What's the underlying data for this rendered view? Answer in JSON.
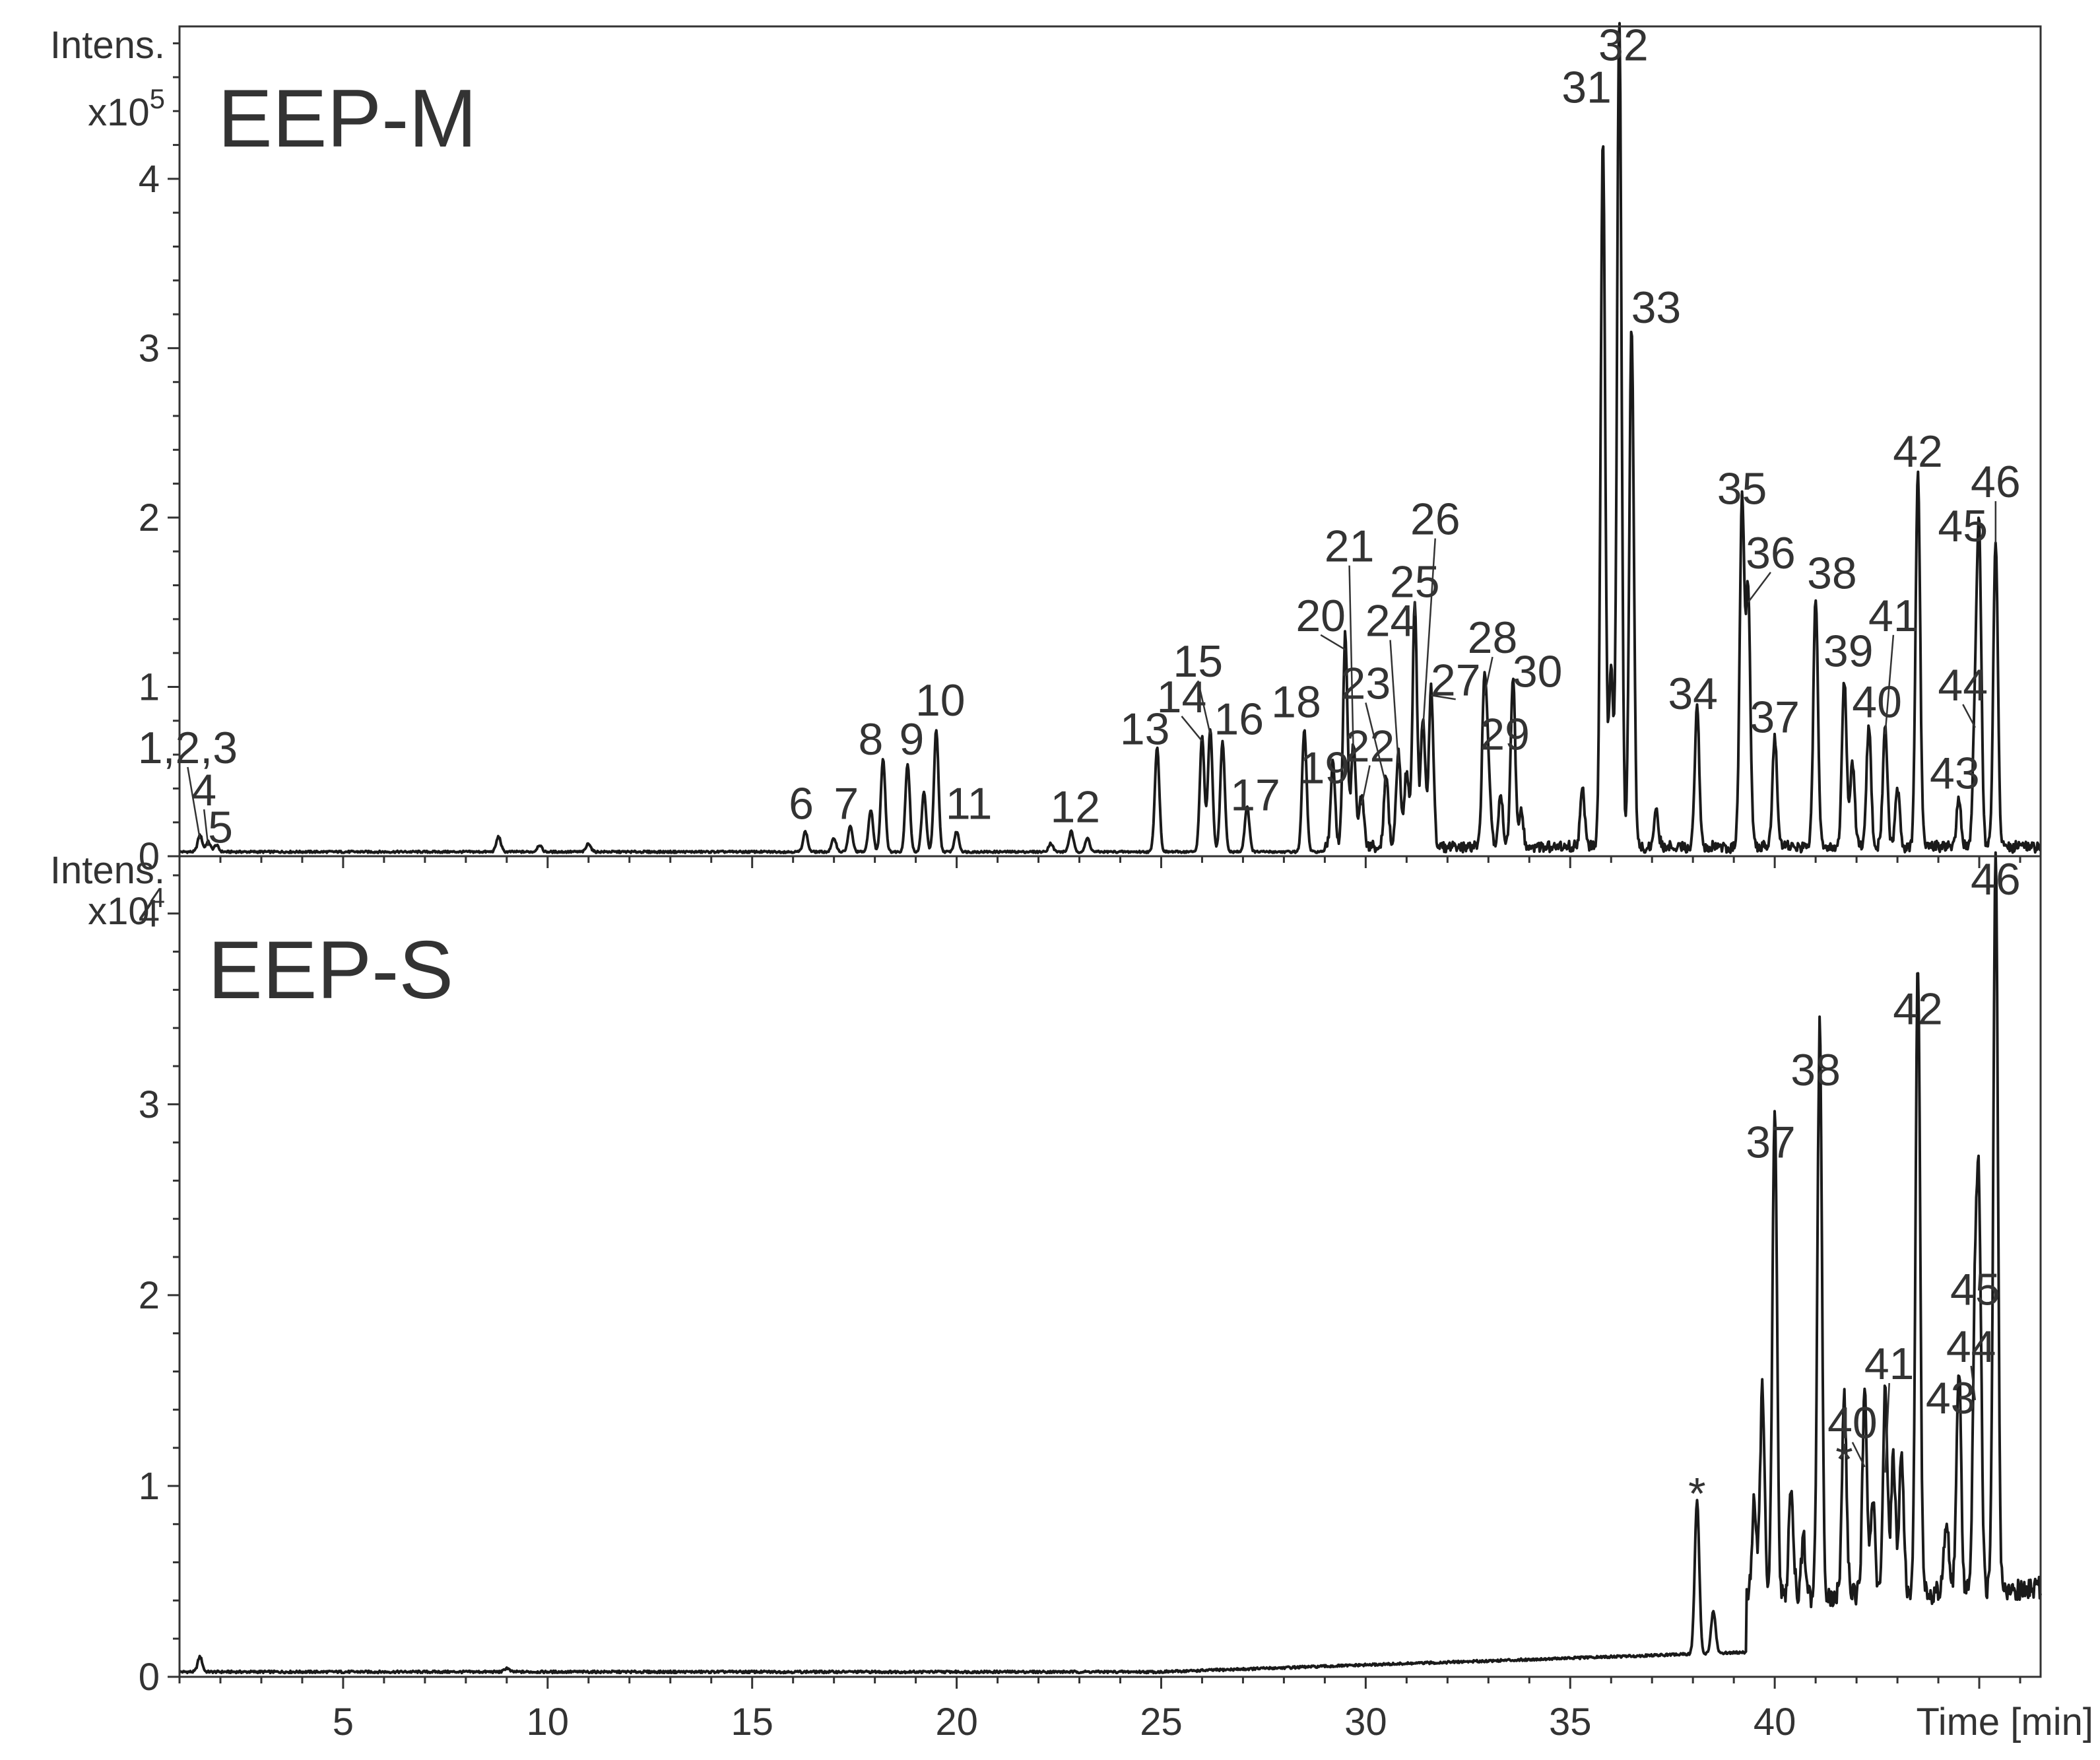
{
  "chart_data": {
    "type": "line",
    "x_axis": {
      "label": "Time [min]",
      "xlim": [
        1.0,
        46.5
      ],
      "ticks": [
        5,
        10,
        15,
        20,
        25,
        30,
        35,
        40
      ],
      "tick_labels": [
        "5",
        "10",
        "15",
        "20",
        "25",
        "30",
        "35",
        "40"
      ]
    },
    "panels": [
      {
        "id": "top",
        "title": "EEP-M",
        "y_axis_label": "Intens.",
        "y_scale_label_base": "x10",
        "y_scale_label_exp": "5",
        "ylim": [
          0,
          4.9
        ],
        "y_ticks": [
          0,
          1,
          2,
          3,
          4
        ],
        "y_tick_labels": [
          "0",
          "1",
          "2",
          "3",
          "4"
        ],
        "baseline": 0.02,
        "peaks": [
          {
            "label": "1,2,3",
            "x": 1.5,
            "y": 0.1
          },
          {
            "label": "4",
            "x": 1.7,
            "y": 0.06
          },
          {
            "label": "5",
            "x": 1.9,
            "y": 0.04
          },
          {
            "label": "",
            "x": 8.8,
            "y": 0.09
          },
          {
            "label": "",
            "x": 9.8,
            "y": 0.04
          },
          {
            "label": "",
            "x": 11.0,
            "y": 0.05
          },
          {
            "label": "6",
            "x": 16.3,
            "y": 0.12
          },
          {
            "label": "",
            "x": 17.0,
            "y": 0.08
          },
          {
            "label": "7",
            "x": 17.4,
            "y": 0.15
          },
          {
            "label": "",
            "x": 17.9,
            "y": 0.25
          },
          {
            "label": "8",
            "x": 18.2,
            "y": 0.55
          },
          {
            "label": "9",
            "x": 18.8,
            "y": 0.52
          },
          {
            "label": "",
            "x": 19.2,
            "y": 0.35
          },
          {
            "label": "10",
            "x": 19.5,
            "y": 0.72
          },
          {
            "label": "11",
            "x": 20.0,
            "y": 0.12
          },
          {
            "label": "",
            "x": 22.3,
            "y": 0.05
          },
          {
            "label": "12",
            "x": 22.8,
            "y": 0.12
          },
          {
            "label": "",
            "x": 23.2,
            "y": 0.08
          },
          {
            "label": "13",
            "x": 24.9,
            "y": 0.62
          },
          {
            "label": "14",
            "x": 26.0,
            "y": 0.68
          },
          {
            "label": "15",
            "x": 26.2,
            "y": 0.72
          },
          {
            "label": "16",
            "x": 26.5,
            "y": 0.65
          },
          {
            "label": "17",
            "x": 27.1,
            "y": 0.27
          },
          {
            "label": "18",
            "x": 28.5,
            "y": 0.72
          },
          {
            "label": "19",
            "x": 29.2,
            "y": 0.5
          },
          {
            "label": "20",
            "x": 29.5,
            "y": 1.25
          },
          {
            "label": "21",
            "x": 29.7,
            "y": 0.6
          },
          {
            "label": "22",
            "x": 29.9,
            "y": 0.3
          },
          {
            "label": "23",
            "x": 30.5,
            "y": 0.42
          },
          {
            "label": "24",
            "x": 30.8,
            "y": 0.55
          },
          {
            "label": "",
            "x": 31.0,
            "y": 0.45
          },
          {
            "label": "25",
            "x": 31.2,
            "y": 1.42
          },
          {
            "label": "26",
            "x": 31.4,
            "y": 0.75
          },
          {
            "label": "27",
            "x": 31.6,
            "y": 0.95
          },
          {
            "label": "28",
            "x": 32.9,
            "y": 0.95
          },
          {
            "label": "29",
            "x": 33.0,
            "y": 0.4
          },
          {
            "label": "",
            "x": 33.3,
            "y": 0.3
          },
          {
            "label": "30",
            "x": 33.6,
            "y": 1.0
          },
          {
            "label": "",
            "x": 33.8,
            "y": 0.2
          },
          {
            "label": "",
            "x": 35.3,
            "y": 0.33
          },
          {
            "label": "31",
            "x": 35.8,
            "y": 4.18
          },
          {
            "label": "",
            "x": 36.0,
            "y": 1.05
          },
          {
            "label": "32",
            "x": 36.2,
            "y": 4.9
          },
          {
            "label": "33",
            "x": 36.5,
            "y": 3.07
          },
          {
            "label": "",
            "x": 37.1,
            "y": 0.2
          },
          {
            "label": "34",
            "x": 38.1,
            "y": 0.82
          },
          {
            "label": "35",
            "x": 39.2,
            "y": 2.07
          },
          {
            "label": "36",
            "x": 39.35,
            "y": 1.5
          },
          {
            "label": "37",
            "x": 40.0,
            "y": 0.65
          },
          {
            "label": "38",
            "x": 41.0,
            "y": 1.48
          },
          {
            "label": "39",
            "x": 41.7,
            "y": 0.98
          },
          {
            "label": "",
            "x": 41.9,
            "y": 0.5
          },
          {
            "label": "40",
            "x": 42.3,
            "y": 0.72
          },
          {
            "label": "41",
            "x": 42.7,
            "y": 0.7
          },
          {
            "label": "",
            "x": 43.0,
            "y": 0.35
          },
          {
            "label": "42",
            "x": 43.5,
            "y": 2.22
          },
          {
            "label": "43",
            "x": 44.5,
            "y": 0.27
          },
          {
            "label": "44",
            "x": 44.9,
            "y": 0.75
          },
          {
            "label": "45",
            "x": 45.0,
            "y": 1.77
          },
          {
            "label": "46",
            "x": 45.4,
            "y": 1.82
          }
        ],
        "annotations": [
          {
            "text": "1,2,3",
            "x": 1.2,
            "y": 0.55,
            "to_x": 1.5,
            "to_y": 0.1
          },
          {
            "text": "4",
            "x": 1.6,
            "y": 0.3,
            "to_x": 1.7,
            "to_y": 0.06
          },
          {
            "text": "5",
            "x": 2.0,
            "y": 0.08
          },
          {
            "text": "6",
            "x": 16.2,
            "y": 0.22
          },
          {
            "text": "7",
            "x": 17.3,
            "y": 0.22
          },
          {
            "text": "8",
            "x": 17.9,
            "y": 0.6
          },
          {
            "text": "9",
            "x": 18.9,
            "y": 0.6
          },
          {
            "text": "10",
            "x": 19.6,
            "y": 0.83
          },
          {
            "text": "11",
            "x": 20.3,
            "y": 0.22
          },
          {
            "text": "12",
            "x": 22.9,
            "y": 0.2
          },
          {
            "text": "13",
            "x": 24.6,
            "y": 0.66
          },
          {
            "text": "14",
            "x": 25.5,
            "y": 0.85,
            "to_x": 26.0,
            "to_y": 0.68
          },
          {
            "text": "15",
            "x": 25.9,
            "y": 1.06,
            "to_x": 26.2,
            "to_y": 0.72
          },
          {
            "text": "16",
            "x": 26.9,
            "y": 0.72
          },
          {
            "text": "17",
            "x": 27.3,
            "y": 0.27
          },
          {
            "text": "18",
            "x": 28.3,
            "y": 0.82
          },
          {
            "text": "19",
            "x": 29.0,
            "y": 0.43
          },
          {
            "text": "20",
            "x": 28.9,
            "y": 1.33,
            "to_x": 29.5,
            "to_y": 1.22
          },
          {
            "text": "21",
            "x": 29.6,
            "y": 1.74,
            "to_x": 29.7,
            "to_y": 0.6
          },
          {
            "text": "22",
            "x": 30.1,
            "y": 0.56,
            "to_x": 29.9,
            "to_y": 0.3
          },
          {
            "text": "23",
            "x": 30.0,
            "y": 0.93,
            "to_x": 30.5,
            "to_y": 0.42
          },
          {
            "text": "24",
            "x": 30.6,
            "y": 1.3,
            "to_x": 30.8,
            "to_y": 0.55
          },
          {
            "text": "25",
            "x": 31.2,
            "y": 1.53,
            "to_x": 31.2,
            "to_y": 1.42
          },
          {
            "text": "26",
            "x": 31.7,
            "y": 1.9,
            "to_x": 31.4,
            "to_y": 0.75
          },
          {
            "text": "27",
            "x": 32.2,
            "y": 0.95,
            "to_x": 31.6,
            "to_y": 0.95
          },
          {
            "text": "28",
            "x": 33.1,
            "y": 1.2,
            "to_x": 32.9,
            "to_y": 0.95
          },
          {
            "text": "29",
            "x": 33.4,
            "y": 0.63
          },
          {
            "text": "30",
            "x": 34.2,
            "y": 1.0
          },
          {
            "text": "31",
            "x": 35.4,
            "y": 4.45
          },
          {
            "text": "32",
            "x": 36.3,
            "y": 4.7
          },
          {
            "text": "33",
            "x": 37.1,
            "y": 3.15
          },
          {
            "text": "34",
            "x": 38.0,
            "y": 0.87
          },
          {
            "text": "35",
            "x": 39.2,
            "y": 2.08
          },
          {
            "text": "36",
            "x": 39.9,
            "y": 1.7,
            "to_x": 39.35,
            "to_y": 1.5
          },
          {
            "text": "37",
            "x": 40.0,
            "y": 0.73
          },
          {
            "text": "38",
            "x": 41.4,
            "y": 1.58
          },
          {
            "text": "39",
            "x": 41.8,
            "y": 1.12
          },
          {
            "text": "40",
            "x": 42.5,
            "y": 0.82
          },
          {
            "text": "41",
            "x": 42.9,
            "y": 1.33,
            "to_x": 42.7,
            "to_y": 0.72
          },
          {
            "text": "42",
            "x": 43.5,
            "y": 2.3
          },
          {
            "text": "43",
            "x": 44.4,
            "y": 0.4
          },
          {
            "text": "44",
            "x": 44.6,
            "y": 0.92,
            "to_x": 44.9,
            "to_y": 0.76
          },
          {
            "text": "45",
            "x": 44.6,
            "y": 1.86
          },
          {
            "text": "46",
            "x": 45.4,
            "y": 2.12,
            "to_x": 45.4,
            "to_y": 1.85
          }
        ]
      },
      {
        "id": "bottom",
        "title": "EEP-S",
        "y_axis_label": "Intens.",
        "y_scale_label_base": "x10",
        "y_scale_label_exp": "4",
        "ylim": [
          0,
          4.3
        ],
        "y_ticks": [
          0,
          1,
          2,
          3,
          4
        ],
        "y_tick_labels": [
          "0",
          "1",
          "2",
          "3",
          "4"
        ],
        "baseline": 0.02,
        "peaks": [
          {
            "label": "",
            "x": 1.5,
            "y": 0.08
          },
          {
            "label": "",
            "x": 9.0,
            "y": 0.02
          },
          {
            "label": "*",
            "x": 38.1,
            "y": 0.8
          },
          {
            "label": "",
            "x": 38.5,
            "y": 0.22
          },
          {
            "label": "",
            "x": 39.5,
            "y": 0.5
          },
          {
            "label": "",
            "x": 39.7,
            "y": 1.1
          },
          {
            "label": "37",
            "x": 40.0,
            "y": 2.6
          },
          {
            "label": "",
            "x": 40.4,
            "y": 0.6
          },
          {
            "label": "",
            "x": 40.7,
            "y": 0.3
          },
          {
            "label": "38",
            "x": 41.1,
            "y": 2.98
          },
          {
            "label": "*",
            "x": 41.7,
            "y": 1.02
          },
          {
            "label": "40",
            "x": 42.2,
            "y": 1.08
          },
          {
            "label": "",
            "x": 42.4,
            "y": 0.5
          },
          {
            "label": "41",
            "x": 42.7,
            "y": 1.05
          },
          {
            "label": "",
            "x": 42.9,
            "y": 0.7
          },
          {
            "label": "",
            "x": 43.1,
            "y": 0.75
          },
          {
            "label": "42",
            "x": 43.5,
            "y": 3.32
          },
          {
            "label": "",
            "x": 44.2,
            "y": 0.4
          },
          {
            "label": "43",
            "x": 44.5,
            "y": 1.2
          },
          {
            "label": "44",
            "x": 44.9,
            "y": 1.45
          },
          {
            "label": "45",
            "x": 45.0,
            "y": 1.85
          },
          {
            "label": "46",
            "x": 45.4,
            "y": 3.92
          }
        ],
        "annotations": [
          {
            "text": "*",
            "x": 38.1,
            "y": 0.88
          },
          {
            "text": "37",
            "x": 39.9,
            "y": 2.72
          },
          {
            "text": "38",
            "x": 41.0,
            "y": 3.1
          },
          {
            "text": "*",
            "x": 41.7,
            "y": 1.06
          },
          {
            "text": "40",
            "x": 41.9,
            "y": 1.25,
            "to_x": 42.2,
            "to_y": 1.1
          },
          {
            "text": "41",
            "x": 42.8,
            "y": 1.56,
            "to_x": 42.7,
            "to_y": 1.07
          },
          {
            "text": "42",
            "x": 43.5,
            "y": 3.42
          },
          {
            "text": "43",
            "x": 44.3,
            "y": 1.38
          },
          {
            "text": "44",
            "x": 44.8,
            "y": 1.65,
            "to_x": 44.9,
            "to_y": 1.45
          },
          {
            "text": "45",
            "x": 44.9,
            "y": 1.95
          },
          {
            "text": "46",
            "x": 45.4,
            "y": 4.1
          }
        ]
      }
    ]
  }
}
